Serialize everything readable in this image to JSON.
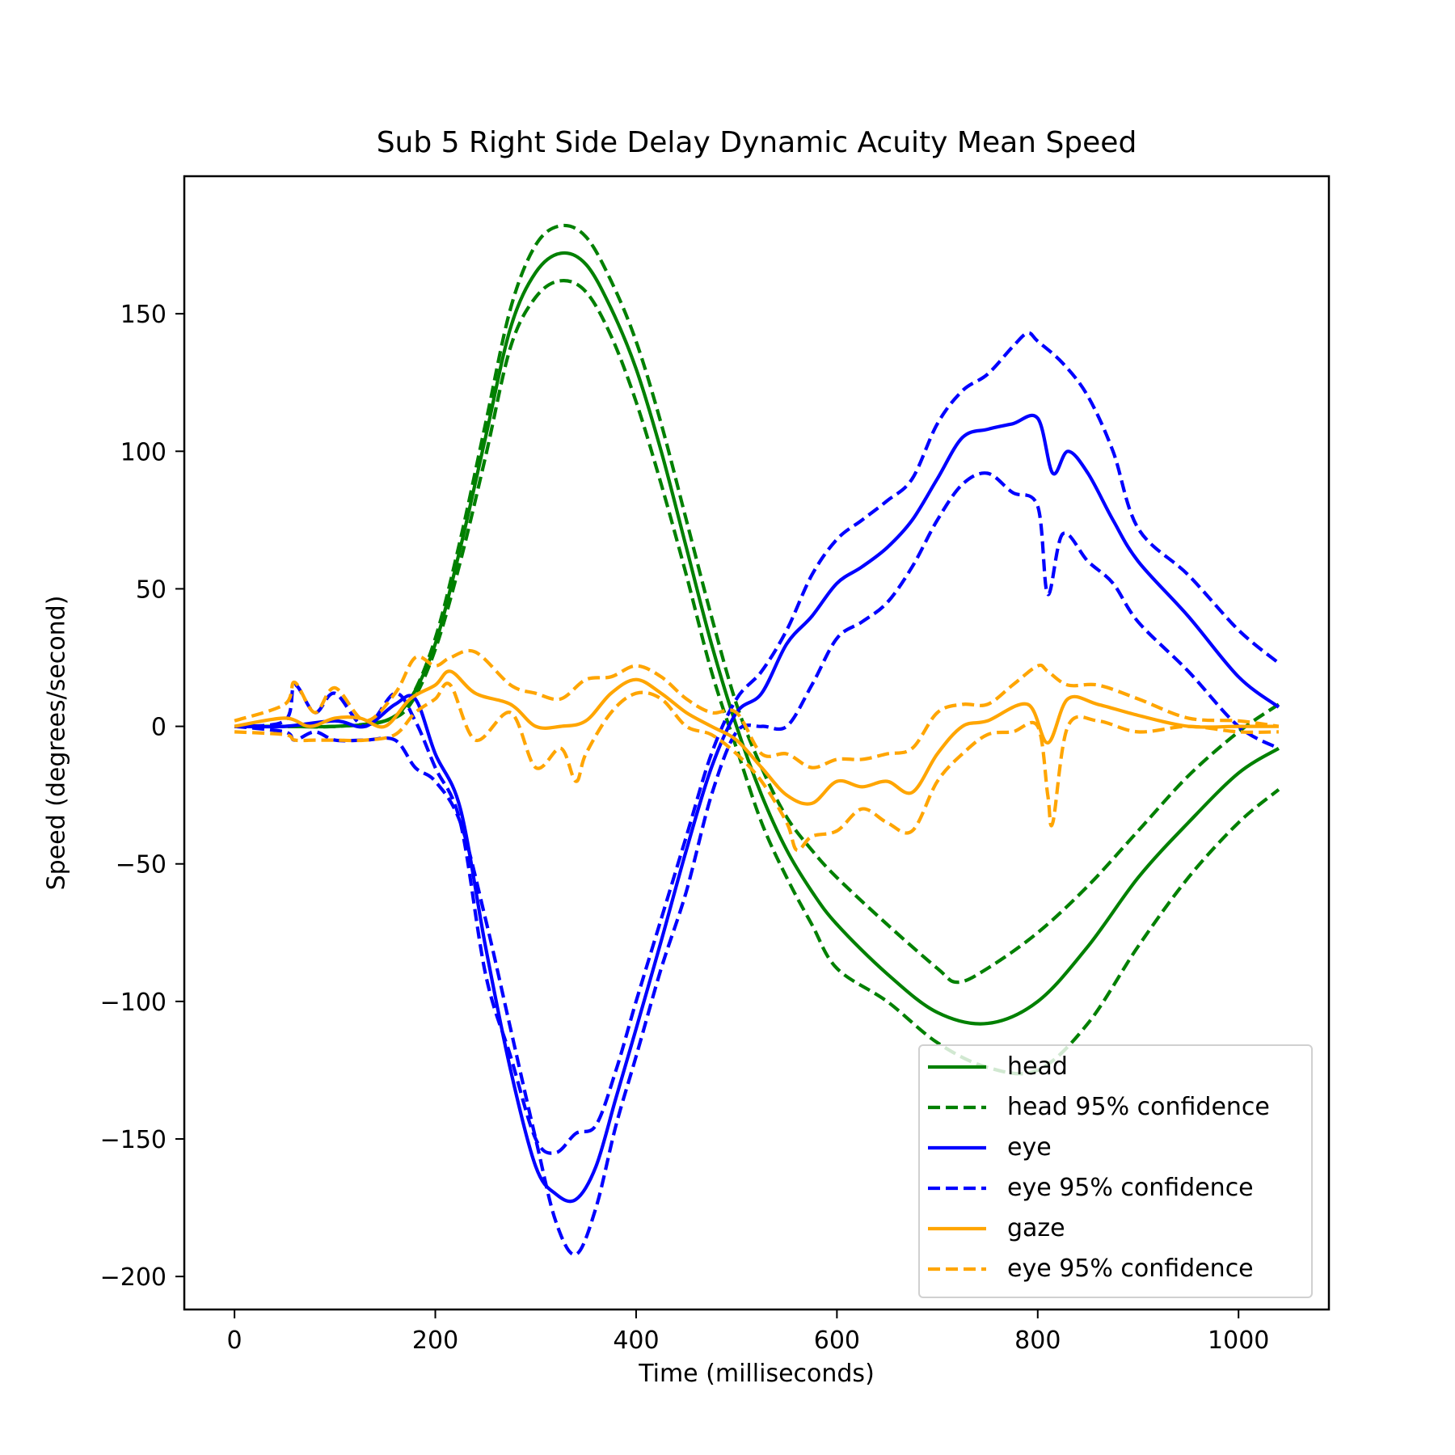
{
  "chart_data": {
    "type": "line",
    "title": "Sub 5 Right Side Delay Dynamic Acuity Mean Speed",
    "xlabel": "Time (milliseconds)",
    "ylabel": "Speed (degrees/second)",
    "xlim": [
      -50,
      1090
    ],
    "ylim": [
      -212,
      200
    ],
    "xticks": [
      0,
      200,
      400,
      600,
      800,
      1000
    ],
    "xtick_labels": [
      "0",
      "200",
      "400",
      "600",
      "800",
      "1000"
    ],
    "yticks": [
      -200,
      -150,
      -100,
      -50,
      0,
      50,
      100,
      150
    ],
    "ytick_labels": [
      "−200",
      "−150",
      "−100",
      "−50",
      "0",
      "50",
      "100",
      "150"
    ],
    "grid": false,
    "legend_position": "lower right",
    "series": [
      {
        "name": "head",
        "color": "#008000",
        "style": "solid",
        "x": [
          0,
          50,
          100,
          150,
          175,
          200,
          225,
          250,
          275,
          300,
          325,
          350,
          375,
          400,
          425,
          450,
          475,
          500,
          525,
          550,
          575,
          600,
          650,
          700,
          750,
          800,
          850,
          900,
          950,
          1000,
          1040
        ],
        "y": [
          0,
          0,
          0,
          2,
          10,
          30,
          65,
          105,
          145,
          165,
          172,
          168,
          152,
          130,
          100,
          65,
          30,
          0,
          -25,
          -45,
          -60,
          -72,
          -90,
          -104,
          -108,
          -100,
          -80,
          -55,
          -35,
          -17,
          -8
        ]
      },
      {
        "name": "head 95% confidence",
        "color": "#008000",
        "style": "dashed",
        "x": [
          0,
          50,
          100,
          150,
          175,
          200,
          225,
          250,
          275,
          300,
          325,
          350,
          375,
          400,
          425,
          450,
          475,
          500,
          525,
          550,
          575,
          600,
          650,
          700,
          720,
          750,
          800,
          850,
          900,
          950,
          1000,
          1040
        ],
        "y": [
          0,
          0,
          0,
          2,
          10,
          32,
          68,
          110,
          152,
          175,
          182,
          178,
          162,
          140,
          110,
          75,
          40,
          8,
          -15,
          -33,
          -45,
          -55,
          -72,
          -88,
          -93,
          -88,
          -75,
          -58,
          -38,
          -18,
          -2,
          8
        ]
      },
      {
        "name": "head 95% confidence (lower)",
        "color": "#008000",
        "style": "dashed",
        "x": [
          0,
          50,
          100,
          150,
          175,
          200,
          225,
          250,
          275,
          300,
          325,
          350,
          375,
          400,
          425,
          450,
          475,
          500,
          525,
          550,
          575,
          600,
          650,
          700,
          750,
          800,
          850,
          900,
          950,
          1000,
          1040
        ],
        "y": [
          0,
          0,
          0,
          2,
          8,
          28,
          60,
          98,
          138,
          156,
          162,
          158,
          142,
          118,
          88,
          55,
          20,
          -8,
          -35,
          -55,
          -72,
          -88,
          -100,
          -115,
          -124,
          -125,
          -108,
          -80,
          -55,
          -35,
          -23
        ]
      },
      {
        "name": "eye",
        "color": "#0000ff",
        "style": "solid",
        "x": [
          0,
          50,
          100,
          130,
          160,
          180,
          200,
          225,
          250,
          275,
          300,
          320,
          340,
          360,
          380,
          400,
          425,
          450,
          475,
          500,
          525,
          550,
          575,
          600,
          625,
          650,
          675,
          700,
          725,
          750,
          775,
          800,
          815,
          830,
          850,
          875,
          900,
          950,
          1000,
          1040
        ],
        "y": [
          0,
          0,
          2,
          0,
          8,
          10,
          -10,
          -30,
          -80,
          -125,
          -160,
          -170,
          -172,
          -160,
          -135,
          -110,
          -78,
          -45,
          -15,
          5,
          12,
          30,
          40,
          52,
          58,
          65,
          75,
          90,
          105,
          108,
          110,
          112,
          92,
          100,
          92,
          75,
          60,
          40,
          18,
          7
        ]
      },
      {
        "name": "eye 95% confidence",
        "color": "#0000ff",
        "style": "dashed",
        "x": [
          0,
          50,
          60,
          80,
          100,
          130,
          160,
          180,
          200,
          225,
          250,
          275,
          300,
          320,
          340,
          360,
          380,
          400,
          425,
          450,
          475,
          500,
          525,
          550,
          575,
          600,
          625,
          650,
          675,
          700,
          725,
          750,
          775,
          790,
          800,
          825,
          850,
          875,
          900,
          950,
          1000,
          1040
        ],
        "y": [
          0,
          2,
          15,
          5,
          12,
          0,
          12,
          2,
          -15,
          -35,
          -90,
          -120,
          -150,
          -155,
          -148,
          -145,
          -125,
          -100,
          -70,
          -40,
          -10,
          10,
          20,
          35,
          55,
          68,
          75,
          82,
          90,
          110,
          122,
          128,
          138,
          143,
          140,
          132,
          120,
          100,
          72,
          55,
          35,
          23
        ]
      },
      {
        "name": "eye 95% confidence (lower)",
        "color": "#0000ff",
        "style": "dashed",
        "x": [
          0,
          50,
          60,
          80,
          100,
          130,
          160,
          180,
          200,
          225,
          250,
          275,
          300,
          320,
          340,
          360,
          380,
          400,
          425,
          450,
          475,
          500,
          525,
          550,
          575,
          600,
          625,
          650,
          675,
          700,
          725,
          750,
          775,
          800,
          810,
          825,
          850,
          875,
          900,
          950,
          1000,
          1040
        ],
        "y": [
          0,
          -2,
          -5,
          -2,
          -5,
          -5,
          -5,
          -15,
          -20,
          -35,
          -70,
          -110,
          -150,
          -180,
          -192,
          -175,
          -145,
          -120,
          -88,
          -60,
          -25,
          -2,
          0,
          0,
          15,
          32,
          38,
          45,
          58,
          75,
          88,
          92,
          85,
          80,
          48,
          70,
          60,
          52,
          38,
          20,
          0,
          -8
        ]
      },
      {
        "name": "gaze",
        "color": "#ffa500",
        "style": "solid",
        "x": [
          0,
          50,
          75,
          100,
          125,
          150,
          175,
          200,
          215,
          240,
          275,
          300,
          325,
          350,
          375,
          400,
          425,
          450,
          475,
          500,
          525,
          550,
          575,
          600,
          625,
          650,
          675,
          700,
          725,
          750,
          790,
          810,
          830,
          860,
          900,
          950,
          1000,
          1040
        ],
        "y": [
          0,
          3,
          0,
          3,
          3,
          0,
          10,
          15,
          20,
          12,
          8,
          0,
          0,
          2,
          12,
          17,
          12,
          5,
          0,
          -5,
          -15,
          -25,
          -28,
          -20,
          -22,
          -20,
          -24,
          -10,
          0,
          2,
          8,
          -6,
          10,
          8,
          4,
          0,
          0,
          0
        ]
      },
      {
        "name": "eye 95% confidence",
        "color": "#ffa500",
        "style": "dashed",
        "x": [
          0,
          50,
          60,
          80,
          100,
          130,
          160,
          180,
          200,
          215,
          240,
          275,
          300,
          325,
          350,
          375,
          400,
          425,
          450,
          475,
          500,
          525,
          550,
          575,
          600,
          625,
          650,
          675,
          700,
          725,
          750,
          775,
          800,
          810,
          830,
          860,
          900,
          950,
          1000,
          1040
        ],
        "y": [
          2,
          8,
          16,
          5,
          14,
          2,
          12,
          25,
          22,
          25,
          27,
          15,
          12,
          10,
          17,
          18,
          22,
          18,
          10,
          5,
          5,
          -10,
          -10,
          -15,
          -12,
          -12,
          -10,
          -8,
          5,
          8,
          8,
          15,
          22,
          20,
          15,
          15,
          10,
          3,
          2,
          0
        ]
      },
      {
        "name": "eye 95% confidence (lower)",
        "color": "#ffa500",
        "style": "dashed",
        "x": [
          0,
          50,
          60,
          80,
          100,
          130,
          160,
          180,
          200,
          215,
          240,
          275,
          300,
          325,
          340,
          350,
          375,
          400,
          425,
          450,
          475,
          500,
          525,
          550,
          560,
          575,
          600,
          625,
          650,
          675,
          700,
          725,
          750,
          775,
          800,
          810,
          815,
          830,
          860,
          900,
          950,
          1000,
          1040
        ],
        "y": [
          -2,
          -3,
          -5,
          -5,
          -5,
          -5,
          -3,
          5,
          10,
          15,
          -5,
          5,
          -15,
          -8,
          -20,
          -10,
          5,
          12,
          10,
          0,
          -3,
          -10,
          -20,
          -35,
          -45,
          -40,
          -38,
          -30,
          -35,
          -38,
          -20,
          -10,
          -3,
          -2,
          0,
          -25,
          -35,
          0,
          2,
          -2,
          0,
          -2,
          -2
        ]
      }
    ],
    "legend": [
      {
        "label": "head",
        "color": "#008000",
        "style": "solid"
      },
      {
        "label": "head 95% confidence",
        "color": "#008000",
        "style": "dashed"
      },
      {
        "label": "eye",
        "color": "#0000ff",
        "style": "solid"
      },
      {
        "label": "eye 95% confidence",
        "color": "#0000ff",
        "style": "dashed"
      },
      {
        "label": "gaze",
        "color": "#ffa500",
        "style": "solid"
      },
      {
        "label": "eye 95% confidence",
        "color": "#ffa500",
        "style": "dashed"
      }
    ]
  }
}
